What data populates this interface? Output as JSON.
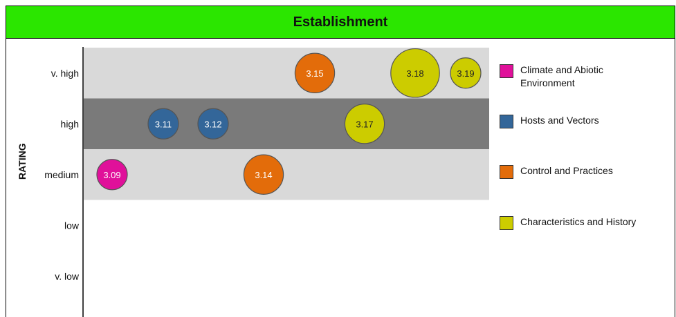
{
  "chart_data": {
    "type": "scatter",
    "title": "Establishment",
    "ylabel": "RATING",
    "y_categories": [
      "v. high",
      "high",
      "medium",
      "low",
      "v. low"
    ],
    "bands": [
      {
        "category": "v. high",
        "color": "#d9d9d9"
      },
      {
        "category": "high",
        "color": "#7a7a7a"
      },
      {
        "category": "medium",
        "color": "#d9d9d9"
      }
    ],
    "series": [
      {
        "name": "Climate and Abiotic Environment",
        "color": "#e0109a",
        "points": [
          {
            "label": "3.09",
            "x": 1,
            "y": "medium",
            "size": 1.0
          }
        ]
      },
      {
        "name": "Hosts and Vectors",
        "color": "#336699",
        "points": [
          {
            "label": "3.11",
            "x": 3,
            "y": "high",
            "size": 1.0
          },
          {
            "label": "3.12",
            "x": 4,
            "y": "high",
            "size": 1.0
          }
        ]
      },
      {
        "name": "Control and Practices",
        "color": "#e36c0a",
        "points": [
          {
            "label": "3.14",
            "x": 5,
            "y": "medium",
            "size": 1.3
          },
          {
            "label": "3.15",
            "x": 6,
            "y": "v. high",
            "size": 1.3
          }
        ]
      },
      {
        "name": "Characteristics and History",
        "color": "#cccc00",
        "points": [
          {
            "label": "3.17",
            "x": 7,
            "y": "high",
            "size": 1.3
          },
          {
            "label": "3.18",
            "x": 8,
            "y": "v. high",
            "size": 1.6
          },
          {
            "label": "3.19",
            "x": 9,
            "y": "v. high",
            "size": 1.0
          }
        ]
      }
    ],
    "grid": false,
    "legend_position": "right"
  }
}
